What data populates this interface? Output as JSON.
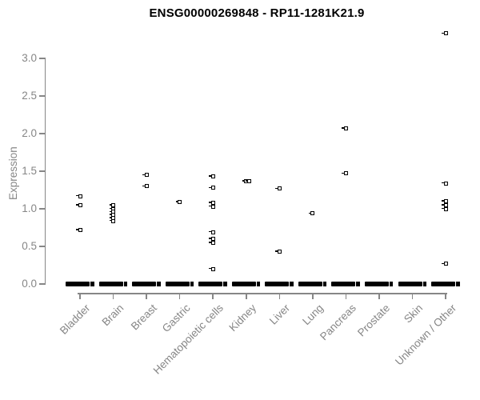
{
  "chart_data": {
    "type": "scatter",
    "title": "ENSG00000269848 - RP11-1281K21.9",
    "xlabel": "",
    "ylabel": "Expression",
    "ylim": [
      0.0,
      3.45
    ],
    "yticks": [
      "0.0",
      "0.5",
      "1.0",
      "1.5",
      "2.0",
      "2.5",
      "3.0"
    ],
    "grid": false,
    "legend": "none",
    "marker": "open-square",
    "marker_color": "#000000",
    "axis_color": "#868686",
    "categories": [
      "Bladder",
      "Brain",
      "Breast",
      "Gastric",
      "Hematopoietic cells",
      "Kidney",
      "Liver",
      "Lung",
      "Pancreas",
      "Prostate",
      "Skin",
      "Unknown / Other"
    ],
    "series": [
      {
        "name": "Bladder",
        "values": [
          1.17,
          1.05,
          0.72
        ],
        "zero_cluster": true
      },
      {
        "name": "Brain",
        "values": [
          1.05,
          1.0,
          0.96,
          0.92,
          0.88,
          0.84
        ],
        "zero_cluster": true
      },
      {
        "name": "Breast",
        "values": [
          1.45,
          1.3
        ],
        "zero_cluster": true
      },
      {
        "name": "Gastric",
        "values": [
          1.09
        ],
        "zero_cluster": true
      },
      {
        "name": "Hematopoietic cells",
        "values": [
          1.43,
          1.28,
          1.08,
          1.03,
          0.69,
          0.6,
          0.55,
          0.2
        ],
        "zero_cluster": true
      },
      {
        "name": "Kidney",
        "values": [
          1.37,
          1.37
        ],
        "zero_cluster": true
      },
      {
        "name": "Liver",
        "values": [
          1.27,
          0.43
        ],
        "zero_cluster": true
      },
      {
        "name": "Lung",
        "values": [
          0.94
        ],
        "zero_cluster": true
      },
      {
        "name": "Pancreas",
        "values": [
          2.07,
          1.47
        ],
        "zero_cluster": true
      },
      {
        "name": "Prostate",
        "values": [],
        "zero_cluster": true
      },
      {
        "name": "Skin",
        "values": [],
        "zero_cluster": true
      },
      {
        "name": "Unknown / Other",
        "values": [
          3.33,
          1.34,
          1.1,
          1.05,
          1.0,
          0.27
        ],
        "zero_cluster": true
      }
    ],
    "zero_cluster_note": "every category shows a dense stack of overlapping points at expression 0, appearing as a thick black bar"
  }
}
